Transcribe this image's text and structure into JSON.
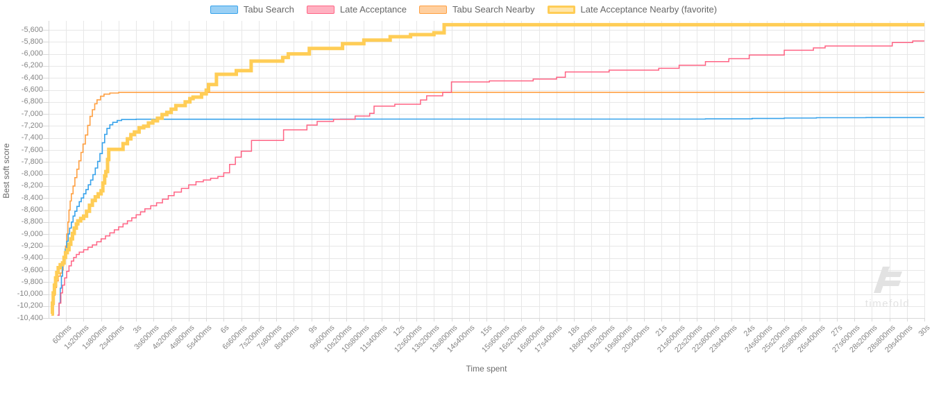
{
  "chart_data": {
    "type": "line",
    "step_interpolation": true,
    "title": "",
    "xlabel": "Time spent",
    "ylabel": "Best soft score",
    "grid": true,
    "legend_position": "top",
    "xlim_seconds": [
      0,
      30
    ],
    "ylim": [
      -10400,
      -5450
    ],
    "watermark": "timefold",
    "x_ticks": {
      "seconds": [
        0.6,
        1.2,
        1.8,
        2.4,
        3,
        3.6,
        4.2,
        4.8,
        5.4,
        6,
        6.6,
        7.2,
        7.8,
        8.4,
        9,
        9.6,
        10.2,
        10.8,
        11.4,
        12,
        12.6,
        13.2,
        13.8,
        14.4,
        15,
        15.6,
        16.2,
        16.8,
        17.4,
        18,
        18.6,
        19.2,
        19.8,
        20.4,
        21,
        21.6,
        22.2,
        22.8,
        23.4,
        24,
        24.6,
        25.2,
        25.8,
        26.4,
        27,
        27.6,
        28.2,
        28.8,
        29.4,
        30
      ],
      "labels": [
        "600ms",
        "1s200ms",
        "1s800ms",
        "2s400ms",
        "3s",
        "3s600ms",
        "4s200ms",
        "4s800ms",
        "5s400ms",
        "6s",
        "6s600ms",
        "7s200ms",
        "7s800ms",
        "8s400ms",
        "9s",
        "9s600ms",
        "10s200ms",
        "10s800ms",
        "11s400ms",
        "12s",
        "12s600ms",
        "13s200ms",
        "13s800ms",
        "14s400ms",
        "15s",
        "15s600ms",
        "16s200ms",
        "16s800ms",
        "17s400ms",
        "18s",
        "18s600ms",
        "19s200ms",
        "19s800ms",
        "20s400ms",
        "21s",
        "21s600ms",
        "22s200ms",
        "22s800ms",
        "23s400ms",
        "24s",
        "24s600ms",
        "25s200ms",
        "25s800ms",
        "26s400ms",
        "27s",
        "27s600ms",
        "28s200ms",
        "28s800ms",
        "29s400ms",
        "30s"
      ]
    },
    "y_ticks": {
      "values": [
        -5600,
        -5800,
        -6000,
        -6200,
        -6400,
        -6600,
        -6800,
        -7000,
        -7200,
        -7400,
        -7600,
        -7800,
        -8000,
        -8200,
        -8400,
        -8600,
        -8800,
        -9000,
        -9200,
        -9400,
        -9600,
        -9800,
        -10000,
        -10200,
        -10400
      ],
      "labels": [
        "-5,600",
        "-5,800",
        "-6,000",
        "-6,200",
        "-6,400",
        "-6,600",
        "-6,800",
        "-7,000",
        "-7,200",
        "-7,400",
        "-7,600",
        "-7,800",
        "-8,000",
        "-8,200",
        "-8,400",
        "-8,600",
        "-8,800",
        "-9,000",
        "-9,200",
        "-9,400",
        "-9,600",
        "-9,800",
        "-10,000",
        "-10,200",
        "-10,400"
      ]
    },
    "series": [
      {
        "name": "Tabu Search Nearby",
        "color": "#ff9f40",
        "fill": "#ffcf9f",
        "width": 1.6,
        "favorite": false,
        "points": [
          [
            0.1,
            -10350
          ],
          [
            0.14,
            -10180
          ],
          [
            0.18,
            -10020
          ],
          [
            0.22,
            -9890
          ],
          [
            0.27,
            -9780
          ],
          [
            0.33,
            -9700
          ],
          [
            0.4,
            -9650
          ],
          [
            0.46,
            -9600
          ],
          [
            0.5,
            -9500
          ],
          [
            0.54,
            -9380
          ],
          [
            0.58,
            -9200
          ],
          [
            0.62,
            -9000
          ],
          [
            0.66,
            -8800
          ],
          [
            0.7,
            -8600
          ],
          [
            0.74,
            -8450
          ],
          [
            0.78,
            -8330
          ],
          [
            0.84,
            -8200
          ],
          [
            0.9,
            -8060
          ],
          [
            0.97,
            -7920
          ],
          [
            1.04,
            -7780
          ],
          [
            1.11,
            -7640
          ],
          [
            1.18,
            -7500
          ],
          [
            1.26,
            -7350
          ],
          [
            1.34,
            -7190
          ],
          [
            1.42,
            -7040
          ],
          [
            1.5,
            -6930
          ],
          [
            1.58,
            -6830
          ],
          [
            1.66,
            -6765
          ],
          [
            1.78,
            -6705
          ],
          [
            1.9,
            -6670
          ],
          [
            2.1,
            -6652
          ],
          [
            2.4,
            -6642
          ],
          [
            30,
            -6642
          ]
        ]
      },
      {
        "name": "Tabu Search",
        "color": "#36a2eb",
        "fill": "#9ad0f5",
        "width": 1.6,
        "favorite": false,
        "points": [
          [
            0.33,
            -10350
          ],
          [
            0.36,
            -10150
          ],
          [
            0.4,
            -9900
          ],
          [
            0.44,
            -9700
          ],
          [
            0.48,
            -9500
          ],
          [
            0.52,
            -9380
          ],
          [
            0.57,
            -9250
          ],
          [
            0.62,
            -9120
          ],
          [
            0.67,
            -9000
          ],
          [
            0.72,
            -8900
          ],
          [
            0.78,
            -8800
          ],
          [
            0.84,
            -8700
          ],
          [
            0.9,
            -8620
          ],
          [
            0.97,
            -8540
          ],
          [
            1.05,
            -8460
          ],
          [
            1.12,
            -8400
          ],
          [
            1.2,
            -8330
          ],
          [
            1.28,
            -8260
          ],
          [
            1.36,
            -8180
          ],
          [
            1.44,
            -8100
          ],
          [
            1.52,
            -8010
          ],
          [
            1.6,
            -7900
          ],
          [
            1.68,
            -7790
          ],
          [
            1.76,
            -7660
          ],
          [
            1.84,
            -7480
          ],
          [
            1.92,
            -7340
          ],
          [
            2,
            -7240
          ],
          [
            2.1,
            -7180
          ],
          [
            2.2,
            -7140
          ],
          [
            2.35,
            -7110
          ],
          [
            2.5,
            -7092
          ],
          [
            3,
            -7088
          ],
          [
            10,
            -7085
          ],
          [
            22.5,
            -7082
          ],
          [
            24.1,
            -7075
          ],
          [
            25.2,
            -7068
          ],
          [
            26.3,
            -7062
          ],
          [
            28,
            -7060
          ],
          [
            30,
            -7060
          ]
        ]
      },
      {
        "name": "Late Acceptance",
        "color": "#ff6384",
        "fill": "#ffb1c1",
        "width": 1.5,
        "favorite": false,
        "points": [
          [
            0.3,
            -10350
          ],
          [
            0.36,
            -10150
          ],
          [
            0.42,
            -9980
          ],
          [
            0.48,
            -9850
          ],
          [
            0.55,
            -9730
          ],
          [
            0.62,
            -9620
          ],
          [
            0.7,
            -9530
          ],
          [
            0.78,
            -9450
          ],
          [
            0.86,
            -9390
          ],
          [
            0.95,
            -9340
          ],
          [
            1.05,
            -9300
          ],
          [
            1.2,
            -9260
          ],
          [
            1.35,
            -9220
          ],
          [
            1.5,
            -9180
          ],
          [
            1.65,
            -9130
          ],
          [
            1.8,
            -9080
          ],
          [
            1.95,
            -9030
          ],
          [
            2.1,
            -8980
          ],
          [
            2.25,
            -8930
          ],
          [
            2.4,
            -8880
          ],
          [
            2.55,
            -8830
          ],
          [
            2.7,
            -8780
          ],
          [
            2.85,
            -8730
          ],
          [
            3,
            -8680
          ],
          [
            3.15,
            -8630
          ],
          [
            3.3,
            -8580
          ],
          [
            3.5,
            -8530
          ],
          [
            3.7,
            -8480
          ],
          [
            3.9,
            -8420
          ],
          [
            4.1,
            -8360
          ],
          [
            4.3,
            -8300
          ],
          [
            4.55,
            -8240
          ],
          [
            4.8,
            -8180
          ],
          [
            5.05,
            -8130
          ],
          [
            5.3,
            -8100
          ],
          [
            5.55,
            -8070
          ],
          [
            5.8,
            -8040
          ],
          [
            6,
            -7980
          ],
          [
            6.2,
            -7840
          ],
          [
            6.4,
            -7720
          ],
          [
            6.6,
            -7620
          ],
          [
            6.95,
            -7440
          ],
          [
            8.05,
            -7265
          ],
          [
            8.85,
            -7185
          ],
          [
            9.2,
            -7125
          ],
          [
            9.76,
            -7090
          ],
          [
            10.5,
            -7035
          ],
          [
            11,
            -6990
          ],
          [
            11.15,
            -6870
          ],
          [
            11.86,
            -6838
          ],
          [
            12.74,
            -6768
          ],
          [
            12.95,
            -6698
          ],
          [
            13.5,
            -6640
          ],
          [
            13.8,
            -6467
          ],
          [
            15.1,
            -6450
          ],
          [
            16.6,
            -6420
          ],
          [
            17.4,
            -6390
          ],
          [
            17.7,
            -6300
          ],
          [
            19.2,
            -6270
          ],
          [
            20.9,
            -6240
          ],
          [
            21.6,
            -6190
          ],
          [
            22.5,
            -6130
          ],
          [
            23.3,
            -6080
          ],
          [
            24,
            -6020
          ],
          [
            25.2,
            -5940
          ],
          [
            26.2,
            -5900
          ],
          [
            26.6,
            -5868
          ],
          [
            28.9,
            -5812
          ],
          [
            29.6,
            -5785
          ],
          [
            30,
            -5785
          ]
        ]
      },
      {
        "name": "Late Acceptance Nearby (favorite)",
        "color": "#ffcd56",
        "fill": "#ffe6aa",
        "width": 5,
        "favorite": true,
        "points": [
          [
            0.1,
            -10330
          ],
          [
            0.13,
            -10150
          ],
          [
            0.16,
            -9980
          ],
          [
            0.2,
            -9850
          ],
          [
            0.24,
            -9730
          ],
          [
            0.28,
            -9640
          ],
          [
            0.33,
            -9560
          ],
          [
            0.4,
            -9510
          ],
          [
            0.48,
            -9480
          ],
          [
            0.53,
            -9390
          ],
          [
            0.58,
            -9310
          ],
          [
            0.64,
            -9260
          ],
          [
            0.7,
            -9170
          ],
          [
            0.76,
            -9080
          ],
          [
            0.82,
            -8990
          ],
          [
            0.88,
            -8900
          ],
          [
            0.95,
            -8830
          ],
          [
            1,
            -8780
          ],
          [
            1.1,
            -8740
          ],
          [
            1.2,
            -8700
          ],
          [
            1.3,
            -8620
          ],
          [
            1.4,
            -8520
          ],
          [
            1.5,
            -8440
          ],
          [
            1.6,
            -8380
          ],
          [
            1.7,
            -8330
          ],
          [
            1.8,
            -8280
          ],
          [
            1.86,
            -8150
          ],
          [
            1.92,
            -8030
          ],
          [
            1.96,
            -7960
          ],
          [
            2.02,
            -7760
          ],
          [
            2.06,
            -7590
          ],
          [
            2.55,
            -7495
          ],
          [
            2.7,
            -7415
          ],
          [
            2.82,
            -7345
          ],
          [
            2.94,
            -7300
          ],
          [
            3.1,
            -7230
          ],
          [
            3.26,
            -7205
          ],
          [
            3.42,
            -7150
          ],
          [
            3.57,
            -7115
          ],
          [
            3.73,
            -7070
          ],
          [
            3.89,
            -7010
          ],
          [
            4.05,
            -6975
          ],
          [
            4.2,
            -6920
          ],
          [
            4.36,
            -6860
          ],
          [
            4.68,
            -6800
          ],
          [
            4.84,
            -6745
          ],
          [
            4.95,
            -6720
          ],
          [
            5.24,
            -6665
          ],
          [
            5.4,
            -6605
          ],
          [
            5.48,
            -6510
          ],
          [
            5.75,
            -6340
          ],
          [
            6.43,
            -6280
          ],
          [
            6.94,
            -6120
          ],
          [
            8.02,
            -6060
          ],
          [
            8.21,
            -6000
          ],
          [
            8.93,
            -5910
          ],
          [
            10.07,
            -5830
          ],
          [
            10.8,
            -5770
          ],
          [
            11.7,
            -5715
          ],
          [
            12.4,
            -5680
          ],
          [
            13.2,
            -5648
          ],
          [
            13.55,
            -5515
          ],
          [
            30,
            -5515
          ]
        ]
      }
    ],
    "legend_order": [
      "Tabu Search",
      "Late Acceptance",
      "Tabu Search Nearby",
      "Late Acceptance Nearby (favorite)"
    ],
    "style": {
      "grid_color": "#e7e7e7",
      "axis_line_color": "#d8d8d8",
      "tick_text_color": "#858585",
      "axis_title_color": "#6b6b6b",
      "watermark_color": "#e2e2e2",
      "background": "#ffffff"
    }
  }
}
